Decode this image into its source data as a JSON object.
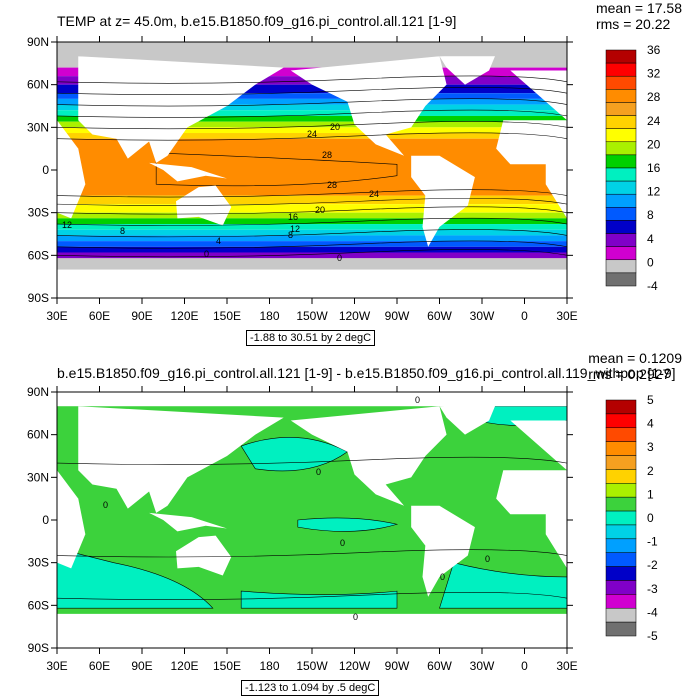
{
  "panels": [
    {
      "title": "TEMP at z=  45.0m, b.e15.B1850.f09_g16.pi_control.all.121 [1-9]",
      "mean_label": "mean = 17.58",
      "rms_label": "rms = 20.22",
      "range_label": "-1.88 to 30.51 by 2 degC",
      "lat_labels": [
        "90N",
        "60N",
        "30N",
        "0",
        "30S",
        "60S",
        "90S"
      ],
      "lon_labels": [
        "30E",
        "60E",
        "90E",
        "120E",
        "150E",
        "180",
        "150W",
        "120W",
        "90W",
        "60W",
        "30W",
        "0",
        "30E"
      ],
      "colorbar_labels": [
        "36",
        "32",
        "28",
        "24",
        "20",
        "16",
        "12",
        "8",
        "4",
        "0",
        "-4"
      ],
      "colorbar_colors": [
        "#b40000",
        "#ff0000",
        "#ff4a00",
        "#ff8c00",
        "#f5a020",
        "#ffd200",
        "#ffff00",
        "#aaf000",
        "#00d000",
        "#00f0c0",
        "#00d2e6",
        "#00a0ff",
        "#005aff",
        "#0000c8",
        "#8000c8",
        "#d000d0",
        "#c8c8c8",
        "#707070"
      ],
      "contour_labels": [
        "20",
        "24",
        "28",
        "28",
        "24",
        "20",
        "16",
        "12",
        "12",
        "8",
        "8",
        "4",
        "0",
        "0"
      ]
    },
    {
      "title": "b.e15.B1850.f09_g16.pi_control.all.121 [1-9] - b.e15.B1850.f09_g16.pi_control.all.119_withpop [1-9]",
      "mean_label": "mean = 0.1209",
      "rms_label": "rms = 0.2927",
      "range_label": "-1.123 to 1.094 by .5 degC",
      "lat_labels": [
        "90N",
        "60N",
        "30N",
        "0",
        "30S",
        "60S",
        "90S"
      ],
      "lon_labels": [
        "30E",
        "60E",
        "90E",
        "120E",
        "150E",
        "180",
        "150W",
        "120W",
        "90W",
        "60W",
        "30W",
        "0",
        "30E"
      ],
      "colorbar_labels": [
        "5",
        "4",
        "3",
        "2",
        "1",
        "0",
        "-1",
        "-2",
        "-3",
        "-4",
        "-5"
      ],
      "colorbar_colors": [
        "#b40000",
        "#ff0000",
        "#ff4a00",
        "#ff8c00",
        "#f5a020",
        "#ffd200",
        "#aaf000",
        "#3cd23c",
        "#00f0c0",
        "#00d2e6",
        "#00a0ff",
        "#005aff",
        "#0000c8",
        "#8000c8",
        "#d000d0",
        "#c8c8c8",
        "#707070"
      ],
      "contour_labels": [
        "0",
        "0",
        "0",
        "0",
        "0",
        "0",
        "0"
      ]
    }
  ]
}
